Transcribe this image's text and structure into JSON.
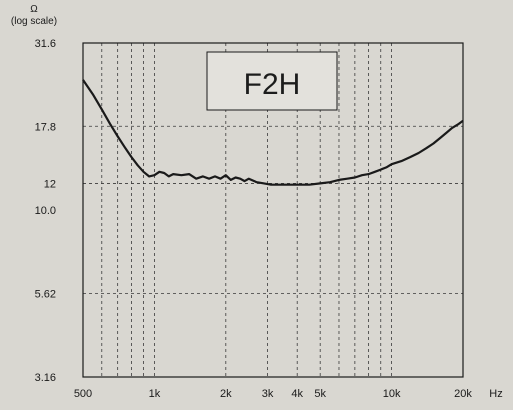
{
  "chart_data": {
    "type": "line",
    "title": "",
    "xlabel": "Hz",
    "ylabel": "Ω",
    "ylabel_note": "(log scale)",
    "x_scale": "log",
    "y_scale": "log",
    "xlim": [
      500,
      20000
    ],
    "ylim": [
      3.16,
      31.6
    ],
    "grid": true,
    "legend_placement": "top-center",
    "colors": {
      "background": "#d9d7d1",
      "line": "#1a1a1a",
      "grid": "#3a3a3a",
      "legend_box": "#e3e1dc"
    },
    "x_ticks": [
      {
        "value": 500,
        "label": "500"
      },
      {
        "value": 1000,
        "label": "1k"
      },
      {
        "value": 2000,
        "label": "2k"
      },
      {
        "value": 3000,
        "label": "3k"
      },
      {
        "value": 4000,
        "label": "4k"
      },
      {
        "value": 5000,
        "label": "5k"
      },
      {
        "value": 10000,
        "label": "10k"
      },
      {
        "value": 20000,
        "label": "20k"
      }
    ],
    "x_minor_grid": [
      600,
      700,
      800,
      900,
      6000,
      7000,
      8000,
      9000
    ],
    "y_ticks": [
      {
        "value": 31.6,
        "label": "31.6"
      },
      {
        "value": 17.8,
        "label": "17.8"
      },
      {
        "value": 12,
        "label": "12"
      },
      {
        "value": 10.0,
        "label": "10.0"
      },
      {
        "value": 5.62,
        "label": "5.62"
      },
      {
        "value": 3.16,
        "label": "3.16"
      }
    ],
    "y_grid": [
      17.8,
      12,
      5.62
    ],
    "series": [
      {
        "name": "F2H",
        "x": [
          500,
          550,
          600,
          650,
          700,
          750,
          800,
          850,
          900,
          950,
          1000,
          1050,
          1100,
          1150,
          1200,
          1300,
          1400,
          1500,
          1600,
          1700,
          1800,
          1900,
          2000,
          2100,
          2200,
          2300,
          2400,
          2500,
          2700,
          2900,
          3100,
          3500,
          4000,
          4500,
          5000,
          5500,
          6000,
          6500,
          7000,
          7500,
          8000,
          8500,
          9000,
          9500,
          10000,
          11000,
          12000,
          13000,
          14000,
          15000,
          16000,
          17000,
          18000,
          19000,
          20000
        ],
        "y": [
          24.5,
          22.2,
          20.0,
          18.1,
          16.6,
          15.4,
          14.4,
          13.6,
          13.0,
          12.6,
          12.7,
          13.0,
          12.9,
          12.6,
          12.8,
          12.7,
          12.8,
          12.4,
          12.6,
          12.4,
          12.6,
          12.4,
          12.7,
          12.3,
          12.5,
          12.4,
          12.2,
          12.4,
          12.1,
          12.0,
          11.9,
          11.9,
          11.9,
          11.9,
          12.0,
          12.1,
          12.3,
          12.4,
          12.5,
          12.7,
          12.8,
          13.0,
          13.2,
          13.4,
          13.7,
          14.0,
          14.4,
          14.8,
          15.3,
          15.8,
          16.4,
          17.0,
          17.6,
          18.0,
          18.5
        ]
      }
    ]
  }
}
